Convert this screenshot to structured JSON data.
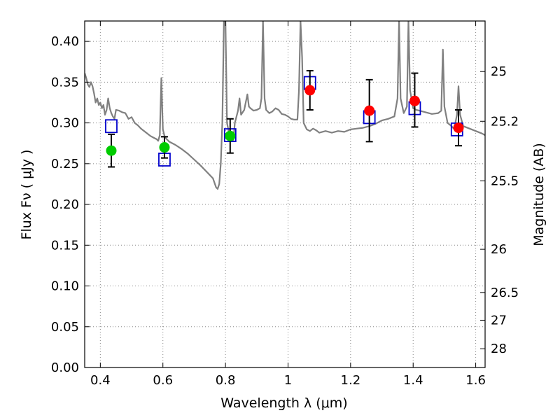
{
  "chart_data": {
    "type": "scatter",
    "title": "",
    "xlabel": "Wavelength  λ (μm)",
    "ylabel": "Flux  Fν  ( μJy )",
    "y2label": "Magnitude (AB)",
    "xlim": [
      0.35,
      1.63
    ],
    "ylim": [
      0.0,
      0.425
    ],
    "grid": true,
    "x_ticks": [
      0.4,
      0.6,
      0.8,
      1.0,
      1.2,
      1.4,
      1.6
    ],
    "x_tick_labels": [
      "0.4",
      "0.6",
      "0.8",
      "1",
      "1.2",
      "1.4",
      "1.6"
    ],
    "y_ticks": [
      0.0,
      0.05,
      0.1,
      0.15,
      0.2,
      0.25,
      0.3,
      0.35,
      0.4
    ],
    "y_tick_labels": [
      "0.00",
      "0.05",
      "0.10",
      "0.15",
      "0.20",
      "0.25",
      "0.30",
      "0.35",
      "0.40"
    ],
    "y2_ticks": [
      {
        "label": "25",
        "flux": 0.363
      },
      {
        "label": "25.2",
        "flux": 0.302
      },
      {
        "label": "25.5",
        "flux": 0.229
      },
      {
        "label": "26",
        "flux": 0.145
      },
      {
        "label": "26.5",
        "flux": 0.092
      },
      {
        "label": "27",
        "flux": 0.058
      },
      {
        "label": "28",
        "flux": 0.023
      }
    ],
    "colors": {
      "model": "#808080",
      "model_points": "#0000cc",
      "green_points": "#00cc00",
      "red_points": "#ff0000",
      "errorbars": "#000000",
      "grid": "#888888"
    },
    "series": [
      {
        "type": "line",
        "points": [
          [
            0.35,
            0.361
          ],
          [
            0.355,
            0.355
          ],
          [
            0.36,
            0.347
          ],
          [
            0.365,
            0.344
          ],
          [
            0.37,
            0.35
          ],
          [
            0.375,
            0.345
          ],
          [
            0.38,
            0.336
          ],
          [
            0.385,
            0.325
          ],
          [
            0.39,
            0.33
          ],
          [
            0.395,
            0.322
          ],
          [
            0.4,
            0.325
          ],
          [
            0.405,
            0.318
          ],
          [
            0.41,
            0.322
          ],
          [
            0.415,
            0.31
          ],
          [
            0.42,
            0.316
          ],
          [
            0.425,
            0.33
          ],
          [
            0.43,
            0.318
          ],
          [
            0.435,
            0.312
          ],
          [
            0.44,
            0.308
          ],
          [
            0.445,
            0.305
          ],
          [
            0.45,
            0.316
          ],
          [
            0.46,
            0.315
          ],
          [
            0.47,
            0.313
          ],
          [
            0.48,
            0.312
          ],
          [
            0.49,
            0.305
          ],
          [
            0.5,
            0.307
          ],
          [
            0.51,
            0.3
          ],
          [
            0.52,
            0.297
          ],
          [
            0.53,
            0.293
          ],
          [
            0.54,
            0.29
          ],
          [
            0.55,
            0.287
          ],
          [
            0.56,
            0.284
          ],
          [
            0.57,
            0.282
          ],
          [
            0.58,
            0.28
          ],
          [
            0.585,
            0.278
          ],
          [
            0.59,
            0.285
          ],
          [
            0.595,
            0.355
          ],
          [
            0.6,
            0.292
          ],
          [
            0.605,
            0.284
          ],
          [
            0.61,
            0.281
          ],
          [
            0.62,
            0.277
          ],
          [
            0.64,
            0.273
          ],
          [
            0.66,
            0.268
          ],
          [
            0.68,
            0.262
          ],
          [
            0.7,
            0.255
          ],
          [
            0.72,
            0.248
          ],
          [
            0.74,
            0.24
          ],
          [
            0.76,
            0.232
          ],
          [
            0.77,
            0.221
          ],
          [
            0.775,
            0.219
          ],
          [
            0.78,
            0.225
          ],
          [
            0.785,
            0.25
          ],
          [
            0.79,
            0.3
          ],
          [
            0.795,
            0.425
          ],
          [
            0.8,
            0.425
          ],
          [
            0.805,
            0.3
          ],
          [
            0.81,
            0.29
          ],
          [
            0.815,
            0.285
          ],
          [
            0.82,
            0.282
          ],
          [
            0.825,
            0.278
          ],
          [
            0.83,
            0.3
          ],
          [
            0.84,
            0.315
          ],
          [
            0.845,
            0.33
          ],
          [
            0.85,
            0.31
          ],
          [
            0.86,
            0.316
          ],
          [
            0.87,
            0.335
          ],
          [
            0.875,
            0.32
          ],
          [
            0.88,
            0.318
          ],
          [
            0.89,
            0.315
          ],
          [
            0.9,
            0.316
          ],
          [
            0.91,
            0.318
          ],
          [
            0.915,
            0.33
          ],
          [
            0.92,
            0.425
          ],
          [
            0.925,
            0.33
          ],
          [
            0.93,
            0.316
          ],
          [
            0.94,
            0.312
          ],
          [
            0.95,
            0.314
          ],
          [
            0.96,
            0.318
          ],
          [
            0.97,
            0.316
          ],
          [
            0.98,
            0.311
          ],
          [
            0.99,
            0.31
          ],
          [
            1.0,
            0.308
          ],
          [
            1.01,
            0.305
          ],
          [
            1.02,
            0.304
          ],
          [
            1.03,
            0.304
          ],
          [
            1.035,
            0.34
          ],
          [
            1.04,
            0.425
          ],
          [
            1.045,
            0.38
          ],
          [
            1.05,
            0.3
          ],
          [
            1.055,
            0.296
          ],
          [
            1.06,
            0.292
          ],
          [
            1.07,
            0.29
          ],
          [
            1.08,
            0.293
          ],
          [
            1.09,
            0.291
          ],
          [
            1.1,
            0.288
          ],
          [
            1.12,
            0.29
          ],
          [
            1.14,
            0.288
          ],
          [
            1.16,
            0.29
          ],
          [
            1.18,
            0.289
          ],
          [
            1.2,
            0.292
          ],
          [
            1.22,
            0.293
          ],
          [
            1.24,
            0.294
          ],
          [
            1.26,
            0.296
          ],
          [
            1.28,
            0.299
          ],
          [
            1.3,
            0.303
          ],
          [
            1.32,
            0.305
          ],
          [
            1.34,
            0.308
          ],
          [
            1.35,
            0.33
          ],
          [
            1.355,
            0.425
          ],
          [
            1.36,
            0.33
          ],
          [
            1.37,
            0.312
          ],
          [
            1.38,
            0.32
          ],
          [
            1.385,
            0.425
          ],
          [
            1.39,
            0.34
          ],
          [
            1.4,
            0.318
          ],
          [
            1.41,
            0.316
          ],
          [
            1.42,
            0.315
          ],
          [
            1.44,
            0.313
          ],
          [
            1.46,
            0.311
          ],
          [
            1.48,
            0.312
          ],
          [
            1.49,
            0.315
          ],
          [
            1.495,
            0.39
          ],
          [
            1.5,
            0.32
          ],
          [
            1.51,
            0.3
          ],
          [
            1.52,
            0.297
          ],
          [
            1.53,
            0.293
          ],
          [
            1.535,
            0.3
          ],
          [
            1.54,
            0.31
          ],
          [
            1.545,
            0.345
          ],
          [
            1.55,
            0.31
          ],
          [
            1.56,
            0.296
          ],
          [
            1.58,
            0.293
          ],
          [
            1.6,
            0.29
          ],
          [
            1.62,
            0.287
          ],
          [
            1.63,
            0.285
          ]
        ]
      },
      {
        "type": "scatter",
        "marker": "square",
        "x": [
          0.435,
          0.605,
          0.815,
          1.07,
          1.26,
          1.405,
          1.54
        ],
        "y": [
          0.296,
          0.255,
          0.285,
          0.349,
          0.307,
          0.318,
          0.292
        ]
      },
      {
        "type": "scatter",
        "marker": "circle",
        "x": [
          0.435,
          0.605,
          0.815
        ],
        "y": [
          0.266,
          0.27,
          0.284
        ],
        "err_low": [
          0.02,
          0.013,
          0.021
        ],
        "err_high": [
          0.02,
          0.013,
          0.021
        ]
      },
      {
        "type": "scatter",
        "marker": "circle",
        "x": [
          1.07,
          1.26,
          1.405,
          1.545
        ],
        "y": [
          0.34,
          0.315,
          0.327,
          0.294
        ],
        "err_low": [
          0.024,
          0.038,
          0.032,
          0.022
        ],
        "err_high": [
          0.024,
          0.038,
          0.034,
          0.022
        ]
      }
    ]
  }
}
